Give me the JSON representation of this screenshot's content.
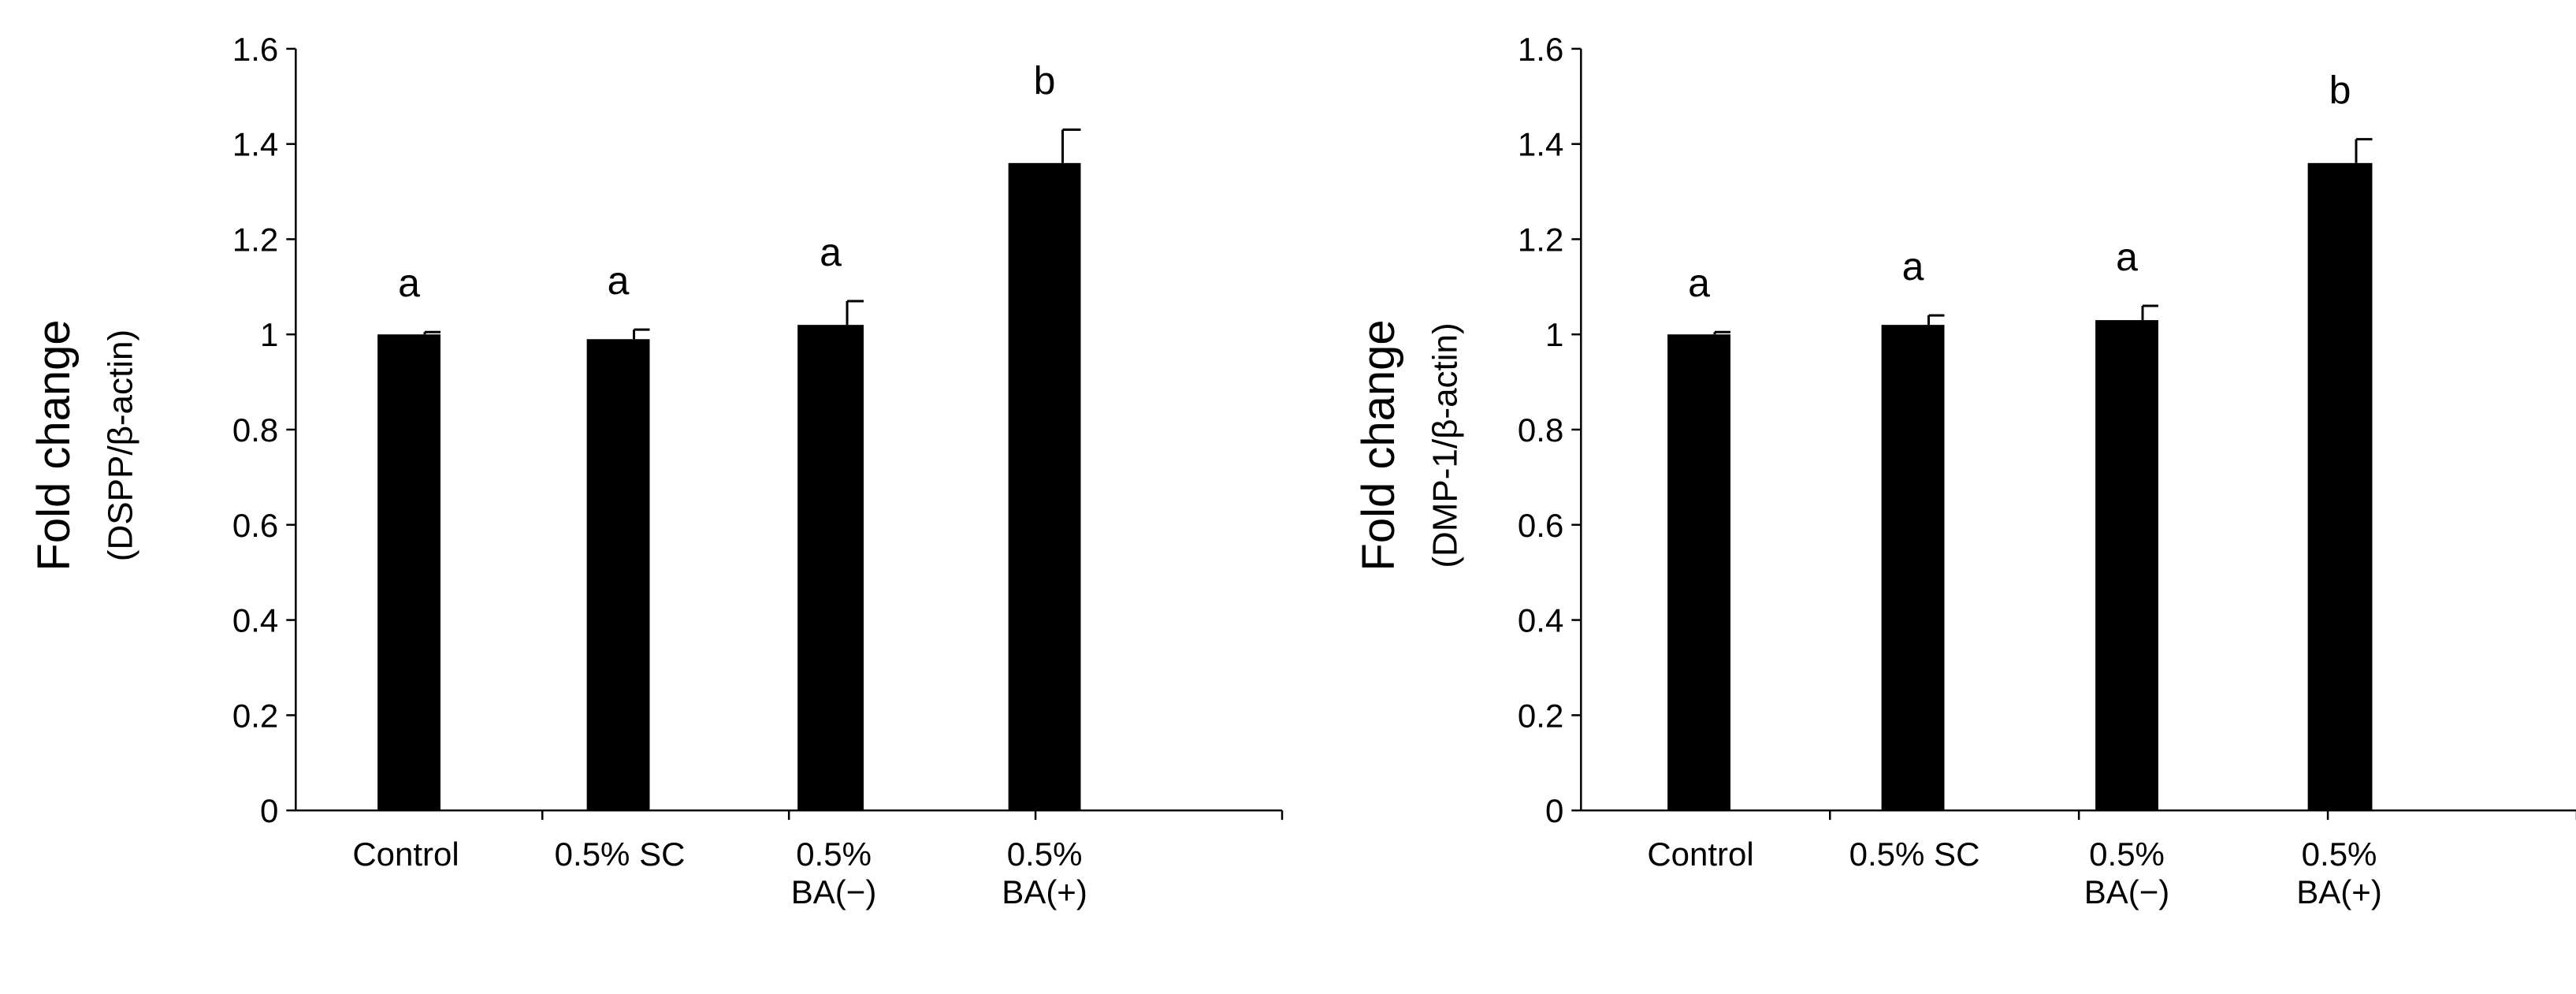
{
  "chart_data": [
    {
      "type": "bar",
      "categories": [
        [
          "Control"
        ],
        [
          "0.5% SC"
        ],
        [
          "0.5%",
          "BA(−)"
        ],
        [
          "0.5%",
          "BA(+)"
        ]
      ],
      "values": [
        1.0,
        0.99,
        1.02,
        1.36
      ],
      "errors": [
        0.005,
        0.02,
        0.05,
        0.07
      ],
      "significance": [
        "a",
        "a",
        "a",
        "b"
      ],
      "ylabel": "Fold change",
      "ylabel_sub": "(DSPP/β-actin)",
      "ylim": [
        0,
        1.6
      ],
      "yticks": [
        "0",
        "0.2",
        "0.4",
        "0.6",
        "0.8",
        "1",
        "1.2",
        "1.4",
        "1.6"
      ],
      "bar_color": "#000000",
      "grid": false
    },
    {
      "type": "bar",
      "categories": [
        [
          "Control"
        ],
        [
          "0.5% SC"
        ],
        [
          "0.5%",
          "BA(−)"
        ],
        [
          "0.5%",
          "BA(+)"
        ]
      ],
      "values": [
        1.0,
        1.02,
        1.03,
        1.36
      ],
      "errors": [
        0.005,
        0.02,
        0.03,
        0.05
      ],
      "significance": [
        "a",
        "a",
        "a",
        "b"
      ],
      "ylabel": "Fold change",
      "ylabel_sub": "(DMP-1/β-actin)",
      "ylim": [
        0,
        1.6
      ],
      "yticks": [
        "0",
        "0.2",
        "0.4",
        "0.6",
        "0.8",
        "1",
        "1.2",
        "1.4",
        "1.6"
      ],
      "bar_color": "#000000",
      "grid": false
    }
  ]
}
